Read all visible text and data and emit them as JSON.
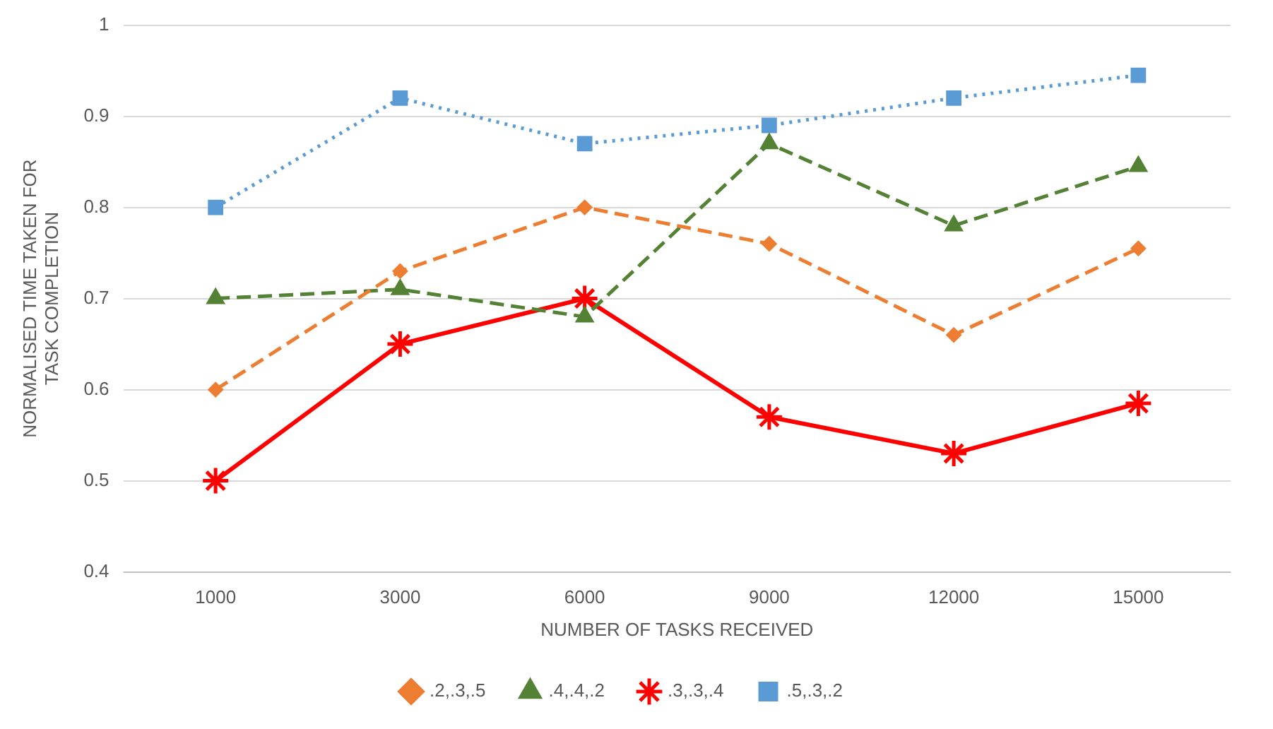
{
  "chart_data": {
    "type": "line",
    "xlabel": "NUMBER OF TASKS RECEIVED",
    "ylabel": "NORMALISED TIME TAKEN FOR TASK COMPLETION",
    "categories": [
      "1000",
      "3000",
      "6000",
      "9000",
      "12000",
      "15000"
    ],
    "series": [
      {
        "name": ".2,.3,.5",
        "color": "#ed7d31",
        "marker": "diamond",
        "line_style": "dashed",
        "values": [
          0.6,
          0.73,
          0.8,
          0.76,
          0.66,
          0.755
        ]
      },
      {
        "name": ".4,.4,.2",
        "color": "#548235",
        "marker": "triangle",
        "line_style": "dashed",
        "values": [
          0.7,
          0.71,
          0.68,
          0.87,
          0.78,
          0.845
        ]
      },
      {
        "name": ".3,.3,.4",
        "color": "#ff0000",
        "marker": "cross",
        "line_style": "solid",
        "values": [
          0.5,
          0.65,
          0.7,
          0.57,
          0.53,
          0.585
        ]
      },
      {
        "name": ".5,.3,.2",
        "color": "#5b9bd5",
        "marker": "square",
        "line_style": "dotted",
        "values": [
          0.8,
          0.92,
          0.87,
          0.89,
          0.92,
          0.945
        ]
      }
    ],
    "ylim": [
      0.4,
      1
    ],
    "yticks": [
      0.4,
      0.5,
      0.6,
      0.7,
      0.8,
      0.9,
      1
    ],
    "grid": "y",
    "legend": "bottom"
  }
}
